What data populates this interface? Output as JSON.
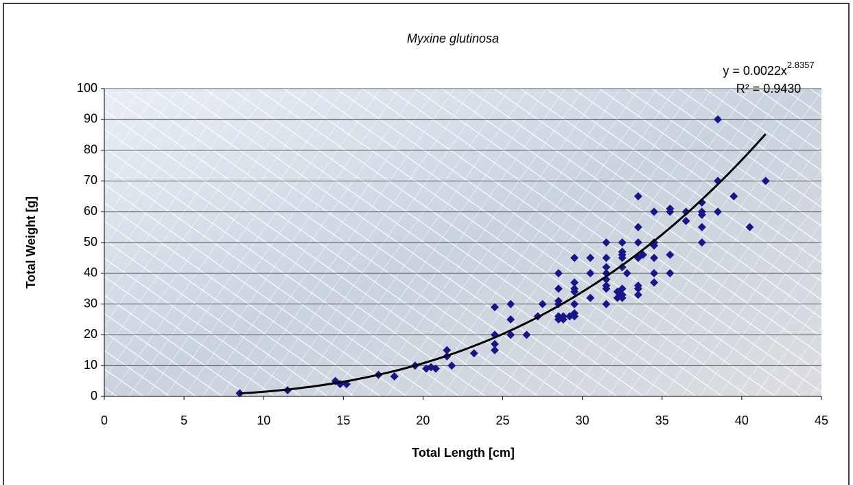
{
  "chart_data": {
    "type": "scatter",
    "title": "Myxine glutinosa",
    "x_label": "Total Length [cm]",
    "y_label": "Total Weight [g]",
    "equation": "y = 0.0022x",
    "equation_exponent": "2.8357",
    "r_squared": "R² = 0.9430",
    "trendline": {
      "a": 0.0022,
      "b": 2.8357,
      "x_range": [
        8.5,
        41.5
      ],
      "color": "#000000"
    },
    "xlim": [
      0,
      45
    ],
    "xticks": [
      0,
      5,
      10,
      15,
      20,
      25,
      30,
      35,
      40,
      45
    ],
    "ylim": [
      0,
      100
    ],
    "yticks": [
      0,
      10,
      20,
      30,
      40,
      50,
      60,
      70,
      80,
      90,
      100
    ],
    "grid": true,
    "series": [
      {
        "color": "#16168a",
        "x": [
          8.5,
          11.5,
          14.5,
          14.8,
          15.2,
          17.2,
          18.2,
          19.5,
          20.2,
          20.5,
          20.8,
          21.5,
          21.5,
          21.8,
          23.2,
          24.5,
          24.5,
          24.5,
          24.5,
          25.5,
          25.5,
          25.5,
          26.5,
          27.2,
          27.5,
          28.5,
          28.5,
          28.5,
          28.5,
          28.5,
          28.5,
          28.8,
          28.8,
          29.2,
          29.5,
          29.5,
          29.5,
          29.5,
          29.5,
          29.5,
          29.5,
          30.5,
          30.5,
          30.5,
          31.5,
          31.5,
          31.5,
          31.5,
          31.5,
          31.5,
          31.5,
          31.5,
          32.2,
          32.2,
          32.5,
          32.5,
          32.5,
          32.5,
          32.5,
          32.5,
          32.5,
          32.5,
          32.8,
          33.5,
          33.5,
          33.5,
          33.5,
          33.5,
          33.5,
          33.5,
          33.8,
          34.5,
          34.5,
          34.5,
          34.5,
          34.5,
          34.5,
          35.5,
          35.5,
          35.5,
          35.5,
          36.5,
          36.5,
          37.5,
          37.5,
          37.5,
          37.5,
          37.5,
          38.5,
          38.5,
          38.5,
          39.5,
          40.5,
          41.5
        ],
        "values": [
          1,
          2,
          5,
          4,
          4,
          7,
          6.5,
          10,
          9,
          9.5,
          9,
          15,
          13,
          10,
          14,
          29,
          20,
          17,
          15,
          30,
          25,
          20,
          20,
          26,
          30,
          40,
          35,
          31,
          30,
          26,
          25,
          25,
          26,
          26,
          45,
          37,
          35,
          34,
          30,
          27,
          26,
          45,
          40,
          32,
          50,
          45,
          42,
          40,
          38,
          36,
          35,
          30,
          34,
          32,
          50,
          47,
          46,
          45,
          42,
          35,
          33,
          32,
          40,
          65,
          55,
          50,
          45,
          36,
          35,
          33,
          46,
          60,
          50,
          49,
          45,
          40,
          37,
          61,
          60,
          46,
          40,
          60,
          57,
          63,
          60,
          59,
          55,
          50,
          90,
          70,
          60,
          65,
          55,
          70
        ]
      }
    ]
  }
}
